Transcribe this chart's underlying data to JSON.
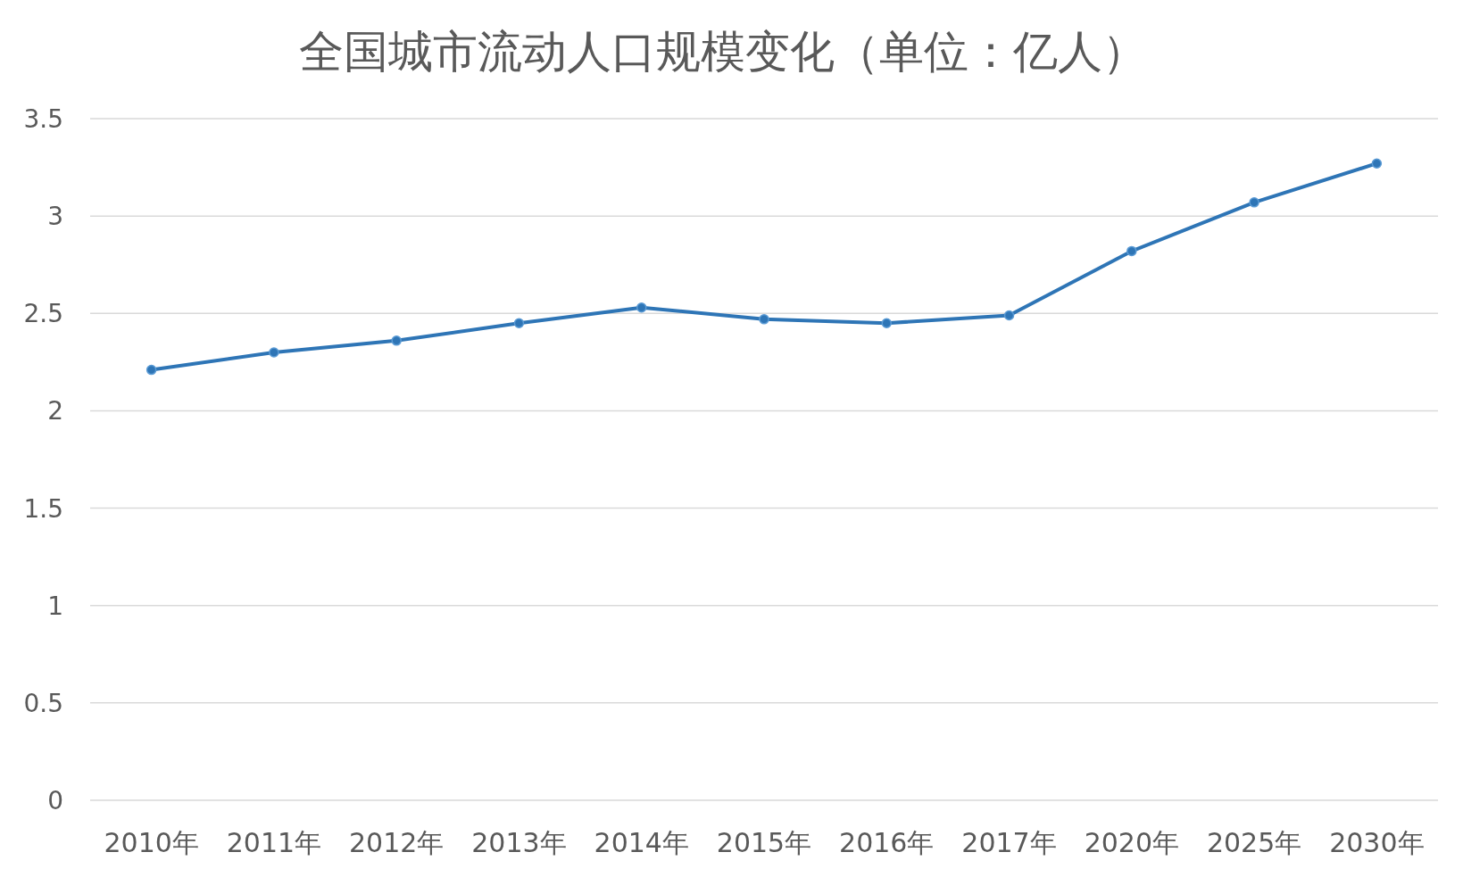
{
  "chart_data": {
    "type": "line",
    "title": "全国城市流动人口规模变化（单位：亿人）",
    "categories": [
      "2010年",
      "2011年",
      "2012年",
      "2013年",
      "2014年",
      "2015年",
      "2016年",
      "2017年",
      "2020年",
      "2025年",
      "2030年"
    ],
    "series": [
      {
        "color": "#2e75b6",
        "values": [
          2.21,
          2.3,
          2.36,
          2.45,
          2.53,
          2.47,
          2.45,
          2.49,
          2.82,
          3.07,
          3.27
        ]
      }
    ],
    "ylim": [
      0,
      3.5
    ],
    "yticks": [
      0,
      0.5,
      1,
      1.5,
      2,
      2.5,
      3,
      3.5
    ],
    "grid": "y",
    "marker": "circle"
  }
}
